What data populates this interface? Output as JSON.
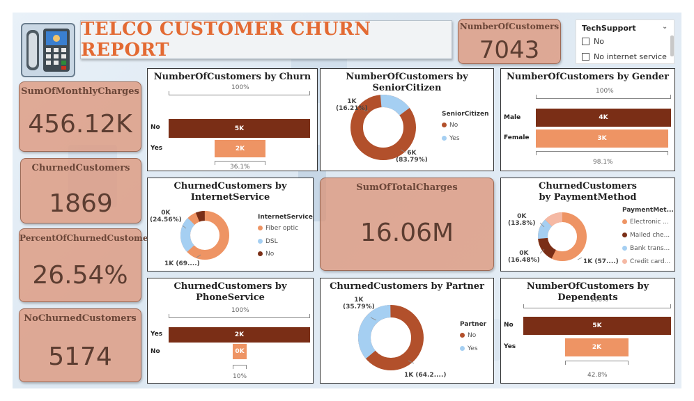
{
  "header": {
    "title": "TELCO CUSTOMER CHURN REPORT"
  },
  "kpis": {
    "customers": {
      "label": "NumberOfCustomers",
      "value": "7043"
    },
    "monthly": {
      "label": "SumOfMonthlyCharges",
      "value": "456.12K"
    },
    "churned": {
      "label": "ChurnedCustomers",
      "value": "1869"
    },
    "percent": {
      "label": "PercentOfChurnedCustomers",
      "value": "26.54%"
    },
    "nochurn": {
      "label": "NoChurnedCustomers",
      "value": "5174"
    },
    "total": {
      "label": "SumOfTotalCharges",
      "value": "16.06M"
    }
  },
  "slicer": {
    "title": "TechSupport",
    "options": [
      "No",
      "No internet service"
    ]
  },
  "colors": {
    "dark": "#7a2e16",
    "mid": "#b2502b",
    "light": "#ee9464",
    "blue": "#a5cff2",
    "pink": "#f5b9a4"
  },
  "charts": {
    "churn": {
      "title": "NumberOfCustomers by Churn",
      "top": "100%",
      "bottom": "36.1%",
      "rows": [
        {
          "label": "No",
          "bar": "5K"
        },
        {
          "label": "Yes",
          "bar": "2K"
        }
      ]
    },
    "senior": {
      "title": "NumberOfCustomers by SeniorCitizen",
      "legend_title": "SeniorCitizen",
      "legend": [
        "No",
        "Yes"
      ],
      "lbl_small": "1K",
      "lbl_small_pct": "(16.21%)",
      "lbl_big": "6K",
      "lbl_big_pct": "(83.79%)"
    },
    "gender": {
      "title": "NumberOfCustomers by Gender",
      "top": "100%",
      "bottom": "98.1%",
      "rows": [
        {
          "label": "Male",
          "bar": "4K"
        },
        {
          "label": "Female",
          "bar": "3K"
        }
      ]
    },
    "internet": {
      "title": "ChurnedCustomers by InternetService",
      "legend_title": "InternetService",
      "legend": [
        "Fiber optic",
        "DSL",
        "No"
      ],
      "lbl_small": "0K",
      "lbl_small_pct": "(24.56%)",
      "lbl_big": "1K (69....)"
    },
    "payment": {
      "title": "ChurnedCustomers by PaymentMethod",
      "legend_title": "PaymentMet...",
      "legend": [
        "Electronic ...",
        "Mailed che...",
        "Bank trans...",
        "Credit card..."
      ],
      "lbl_a": "0K",
      "lbl_a_pct": "(13.8%)",
      "lbl_b": "0K",
      "lbl_b_pct": "(16.48%)",
      "lbl_big": "1K (57....)"
    },
    "phone": {
      "title": "ChurnedCustomers by PhoneService",
      "top": "100%",
      "bottom": "10%",
      "rows": [
        {
          "label": "Yes",
          "bar": "2K"
        },
        {
          "label": "No",
          "bar": "0K"
        }
      ]
    },
    "partner": {
      "title": "ChurnedCustomers by Partner",
      "legend_title": "Partner",
      "legend": [
        "No",
        "Yes"
      ],
      "lbl_small": "1K",
      "lbl_small_pct": "(35.79%)",
      "lbl_big": "1K (64.2....)"
    },
    "dependents": {
      "title": "NumberOfCustomers by Dependents",
      "top": "100%",
      "bottom": "42.8%",
      "rows": [
        {
          "label": "No",
          "bar": "5K"
        },
        {
          "label": "Yes",
          "bar": "2K"
        }
      ]
    }
  },
  "chart_data": [
    {
      "type": "bar",
      "title": "NumberOfCustomers by Churn",
      "categories": [
        "No",
        "Yes"
      ],
      "values": [
        5174,
        1869
      ]
    },
    {
      "type": "pie",
      "title": "NumberOfCustomers by SeniorCitizen",
      "categories": [
        "No",
        "Yes"
      ],
      "values": [
        83.79,
        16.21
      ]
    },
    {
      "type": "bar",
      "title": "NumberOfCustomers by Gender",
      "categories": [
        "Male",
        "Female"
      ],
      "values": [
        3555,
        3488
      ]
    },
    {
      "type": "pie",
      "title": "ChurnedCustomers by InternetService",
      "categories": [
        "Fiber optic",
        "DSL",
        "No"
      ],
      "values": [
        69.4,
        24.56,
        6.04
      ]
    },
    {
      "type": "pie",
      "title": "ChurnedCustomers by PaymentMethod",
      "categories": [
        "Electronic check",
        "Mailed check",
        "Bank transfer",
        "Credit card"
      ],
      "values": [
        57.3,
        16.48,
        13.8,
        12.42
      ]
    },
    {
      "type": "bar",
      "title": "ChurnedCustomers by PhoneService",
      "categories": [
        "Yes",
        "No"
      ],
      "values": [
        1699,
        170
      ]
    },
    {
      "type": "pie",
      "title": "ChurnedCustomers by Partner",
      "categories": [
        "No",
        "Yes"
      ],
      "values": [
        64.21,
        35.79
      ]
    },
    {
      "type": "bar",
      "title": "NumberOfCustomers by Dependents",
      "categories": [
        "No",
        "Yes"
      ],
      "values": [
        4933,
        2110
      ]
    }
  ]
}
